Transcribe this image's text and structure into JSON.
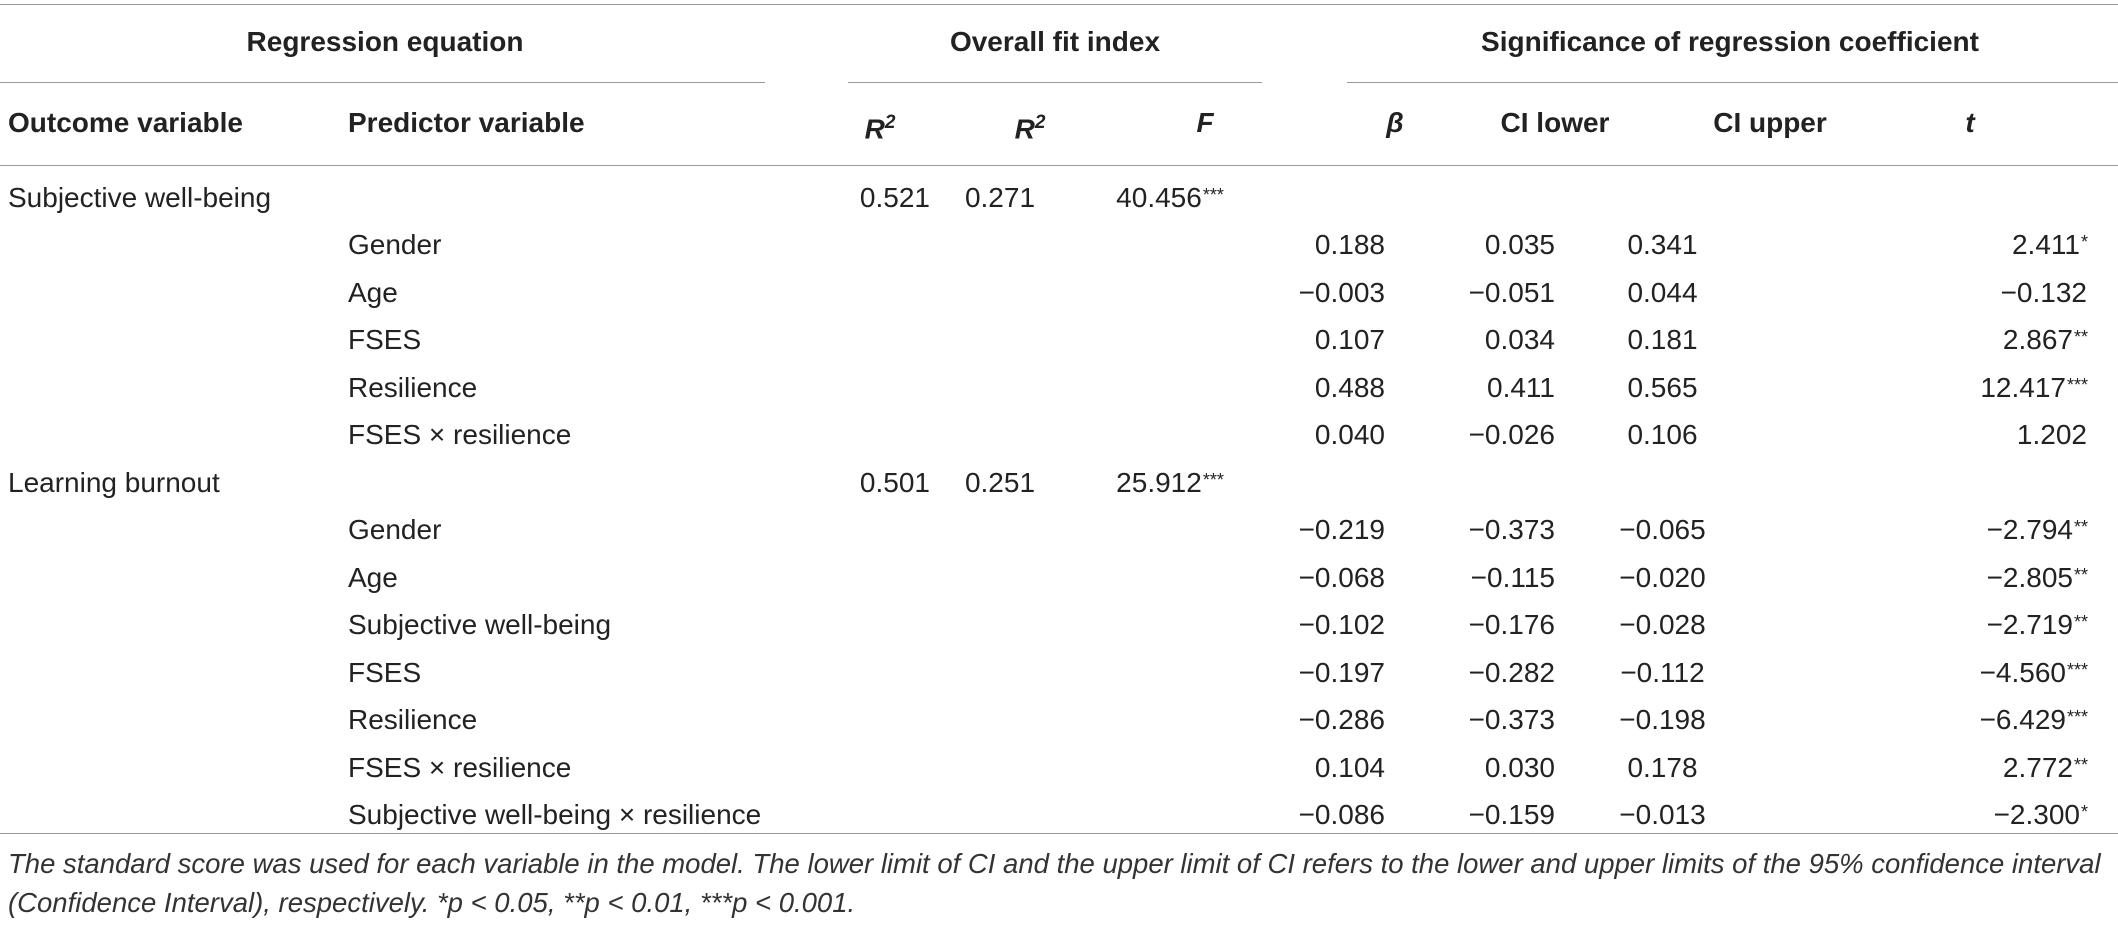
{
  "groups": {
    "regression_equation": "Regression equation",
    "overall_fit": "Overall fit index",
    "significance": "Significance of regression coefficient"
  },
  "columns": {
    "outcome": "Outcome variable",
    "predictor": "Predictor variable",
    "r": "R",
    "r_sup": "2",
    "r2": "R",
    "r2_sup": "2",
    "f": "F",
    "beta": "β",
    "ci_lower": "CI lower",
    "ci_upper": "CI upper",
    "t": "t"
  },
  "rows": [
    {
      "outcome": "Subjective well-being",
      "predictor": "",
      "r": "0.521",
      "r2": "0.271",
      "f": "40.456",
      "f_sig": "***",
      "beta": "",
      "ci_lower": "",
      "ci_upper": "",
      "t": "",
      "t_sig": ""
    },
    {
      "outcome": "",
      "predictor": "Gender",
      "r": "",
      "r2": "",
      "f": "",
      "f_sig": "",
      "beta": "0.188",
      "ci_lower": "0.035",
      "ci_upper": "0.341",
      "t": "2.411",
      "t_sig": "*"
    },
    {
      "outcome": "",
      "predictor": "Age",
      "r": "",
      "r2": "",
      "f": "",
      "f_sig": "",
      "beta": "−0.003",
      "ci_lower": "−0.051",
      "ci_upper": "0.044",
      "t": "−0.132",
      "t_sig": ""
    },
    {
      "outcome": "",
      "predictor": "FSES",
      "r": "",
      "r2": "",
      "f": "",
      "f_sig": "",
      "beta": "0.107",
      "ci_lower": "0.034",
      "ci_upper": "0.181",
      "t": "2.867",
      "t_sig": "**"
    },
    {
      "outcome": "",
      "predictor": "Resilience",
      "r": "",
      "r2": "",
      "f": "",
      "f_sig": "",
      "beta": "0.488",
      "ci_lower": "0.411",
      "ci_upper": "0.565",
      "t": "12.417",
      "t_sig": "***"
    },
    {
      "outcome": "",
      "predictor": "FSES × resilience",
      "r": "",
      "r2": "",
      "f": "",
      "f_sig": "",
      "beta": "0.040",
      "ci_lower": "−0.026",
      "ci_upper": "0.106",
      "t": "1.202",
      "t_sig": ""
    },
    {
      "outcome": "Learning burnout",
      "predictor": "",
      "r": "0.501",
      "r2": "0.251",
      "f": "25.912",
      "f_sig": "***",
      "beta": "",
      "ci_lower": "",
      "ci_upper": "",
      "t": "",
      "t_sig": ""
    },
    {
      "outcome": "",
      "predictor": "Gender",
      "r": "",
      "r2": "",
      "f": "",
      "f_sig": "",
      "beta": "−0.219",
      "ci_lower": "−0.373",
      "ci_upper": "−0.065",
      "t": "−2.794",
      "t_sig": "**"
    },
    {
      "outcome": "",
      "predictor": "Age",
      "r": "",
      "r2": "",
      "f": "",
      "f_sig": "",
      "beta": "−0.068",
      "ci_lower": "−0.115",
      "ci_upper": "−0.020",
      "t": "−2.805",
      "t_sig": "**"
    },
    {
      "outcome": "",
      "predictor": "Subjective well-being",
      "r": "",
      "r2": "",
      "f": "",
      "f_sig": "",
      "beta": "−0.102",
      "ci_lower": "−0.176",
      "ci_upper": "−0.028",
      "t": "−2.719",
      "t_sig": "**"
    },
    {
      "outcome": "",
      "predictor": "FSES",
      "r": "",
      "r2": "",
      "f": "",
      "f_sig": "",
      "beta": "−0.197",
      "ci_lower": "−0.282",
      "ci_upper": "−0.112",
      "t": "−4.560",
      "t_sig": "***"
    },
    {
      "outcome": "",
      "predictor": "Resilience",
      "r": "",
      "r2": "",
      "f": "",
      "f_sig": "",
      "beta": "−0.286",
      "ci_lower": "−0.373",
      "ci_upper": "−0.198",
      "t": "−6.429",
      "t_sig": "***"
    },
    {
      "outcome": "",
      "predictor": "FSES × resilience",
      "r": "",
      "r2": "",
      "f": "",
      "f_sig": "",
      "beta": "0.104",
      "ci_lower": "0.030",
      "ci_upper": "0.178",
      "t": "2.772",
      "t_sig": "**"
    },
    {
      "outcome": "",
      "predictor": "Subjective well-being × resilience",
      "r": "",
      "r2": "",
      "f": "",
      "f_sig": "",
      "beta": "−0.086",
      "ci_lower": "−0.159",
      "ci_upper": "−0.013",
      "t": "−2.300",
      "t_sig": "*"
    }
  ],
  "footnote": "The standard score was used for each variable in the model. The lower limit of CI and the upper limit of CI refers to the lower and upper limits of the 95% confidence interval (Confidence Interval), respectively. *p < 0.05, **p < 0.01, ***p < 0.001."
}
